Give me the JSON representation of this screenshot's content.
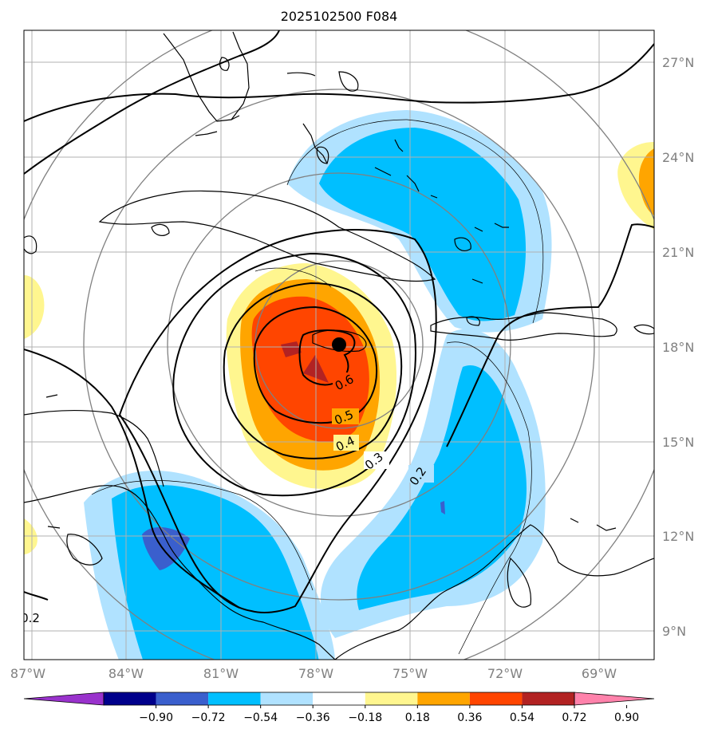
{
  "title": "2025102500 F084",
  "lat_labels": [
    "27°N",
    "24°N",
    "21°N",
    "18°N",
    "15°N",
    "12°N",
    "9°N"
  ],
  "lon_labels": [
    "87°W",
    "84°W",
    "81°W",
    "78°W",
    "75°W",
    "72°W",
    "69°W"
  ],
  "colorbar": {
    "labels": [
      "−0.90",
      "−0.72",
      "−0.54",
      "−0.36",
      "−0.18",
      "0.18",
      "0.36",
      "0.54",
      "0.72",
      "0.90"
    ],
    "colors": [
      "#9932cc",
      "#00008b",
      "#3a5fcd",
      "#00bfff",
      "#b0e2ff",
      "#ffffff",
      "#fff68f",
      "#ffa500",
      "#ff4500",
      "#b22222",
      "#ff82ab"
    ]
  },
  "contour_labels": [
    "0.6",
    "0.5",
    "0.4",
    "0.3",
    "0.2",
    "0.2"
  ],
  "map": {
    "center_marker": "storm-center",
    "extent": {
      "lon": [
        -87.5,
        -67.5
      ],
      "lat": [
        8,
        28
      ]
    }
  }
}
